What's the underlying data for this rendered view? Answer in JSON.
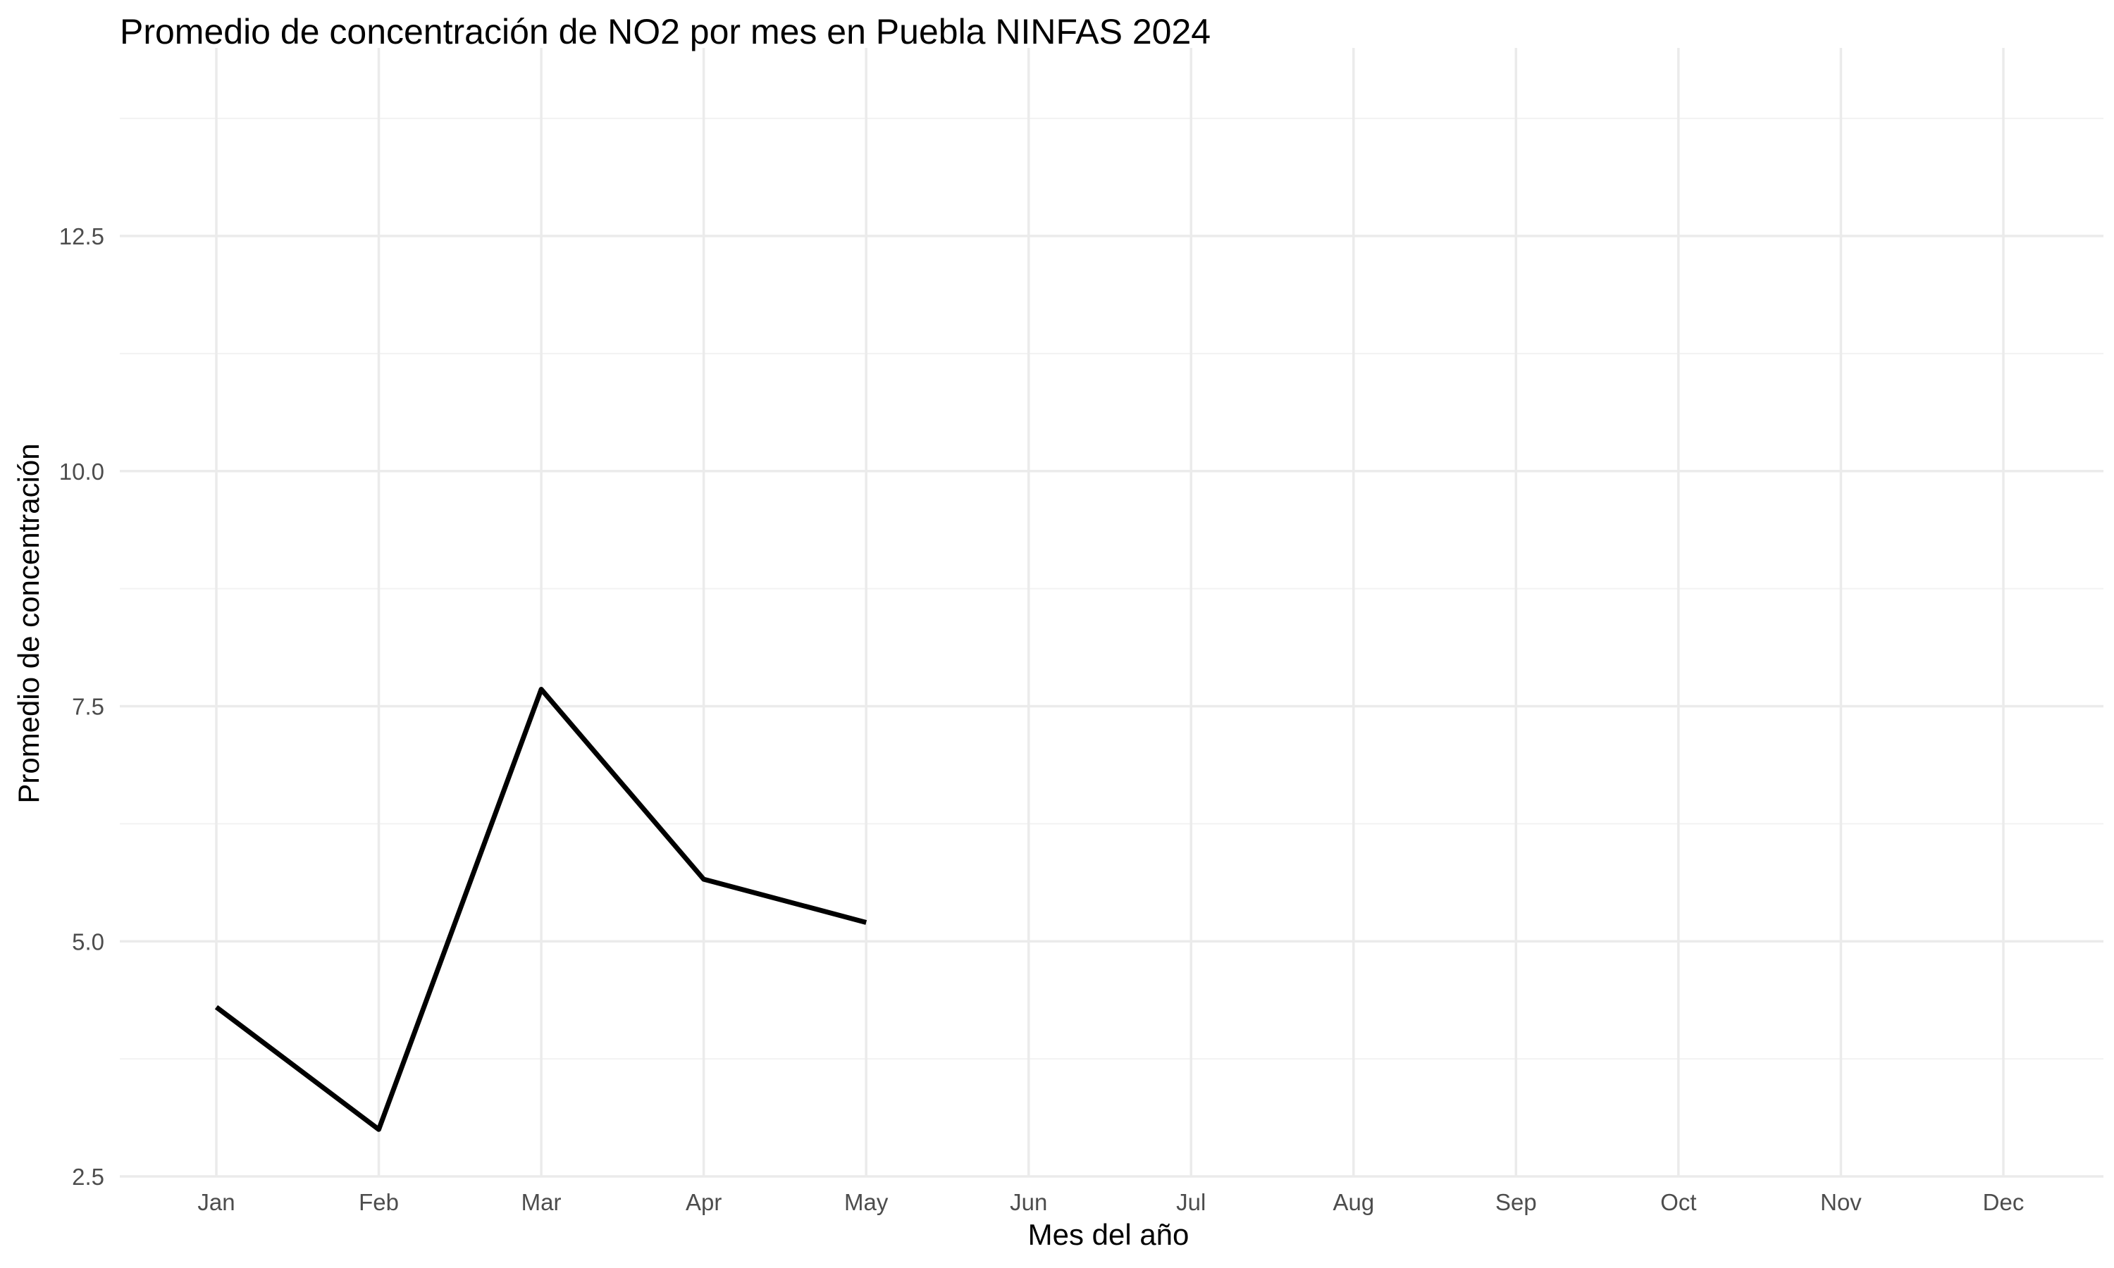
{
  "chart_data": {
    "type": "line",
    "title": "Promedio de concentración de NO2 por mes en Puebla NINFAS 2024",
    "xlabel": "Mes del año",
    "ylabel": "Promedio de concentración",
    "categories": [
      "Jan",
      "Feb",
      "Mar",
      "Apr",
      "May",
      "Jun",
      "Jul",
      "Aug",
      "Sep",
      "Oct",
      "Nov",
      "Dec"
    ],
    "series": [
      {
        "values": [
          4.3,
          3.0,
          7.68,
          5.66,
          5.2,
          null,
          null,
          null,
          null,
          null,
          null,
          null
        ]
      }
    ],
    "ylim": [
      2.5,
      14.5
    ],
    "y_ticks": [
      2.5,
      5.0,
      7.5,
      10.0,
      12.5
    ],
    "y_tick_labels": [
      "2.5",
      "5.0",
      "7.5",
      "10.0",
      "12.5"
    ],
    "grid": true,
    "legend": "none",
    "colors": {
      "line": "#000000",
      "grid": "#ebebeb",
      "tick_text": "#4d4d4d"
    }
  }
}
